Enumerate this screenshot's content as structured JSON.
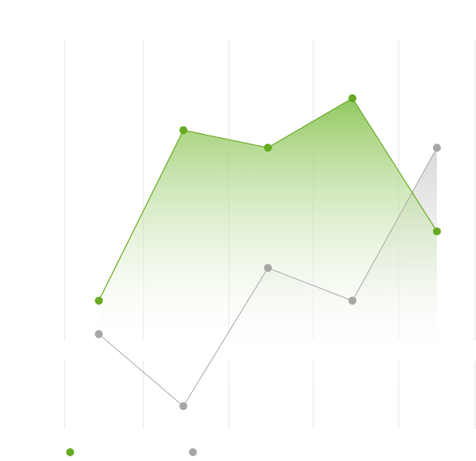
{
  "chart_data": {
    "type": "area",
    "categories": [
      null,
      null,
      null,
      null,
      null
    ],
    "series": [
      {
        "color": "#66aa22",
        "values": [
          33,
          76.8,
          72.3,
          85,
          50.8
        ]
      },
      {
        "color": "#a6a6a6",
        "values": [
          24.4,
          5.9,
          41.4,
          33,
          72.3
        ]
      }
    ],
    "ylim": [
      0,
      100
    ]
  }
}
